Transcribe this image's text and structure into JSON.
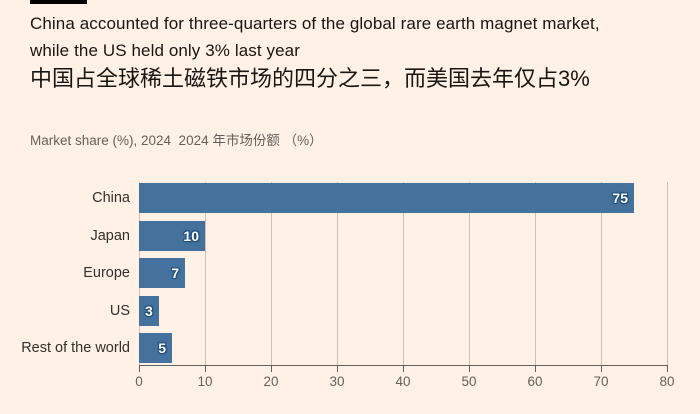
{
  "header": {
    "title_en_line1": "China accounted for three-quarters of the global rare earth magnet market,",
    "title_en_line2": "while the US held only 3% last year",
    "title_zh": "中国占全球稀土磁铁市场的四分之三，而美国去年仅占3%",
    "subtitle": "Market share (%), 2024  2024 年市场份额 （%）"
  },
  "colors": {
    "background": "#FFF1E5",
    "bar": "#45719D",
    "value_label_halo": "#1F4E7A",
    "gridline": "#CDC1B7",
    "axis": "#66605C",
    "title_text": "#1A1613",
    "category_text": "#33302E"
  },
  "chart_data": {
    "type": "bar",
    "orientation": "horizontal",
    "title": "China accounted for three-quarters of the global rare earth magnet market, while the US held only 3% last year",
    "subtitle": "Market share (%), 2024",
    "categories": [
      "China",
      "Japan",
      "Europe",
      "US",
      "Rest of the world"
    ],
    "values": [
      75,
      10,
      7,
      3,
      5
    ],
    "xlabel": "",
    "ylabel": "",
    "xlim": [
      0,
      80
    ],
    "xticks": [
      0,
      10,
      20,
      30,
      40,
      50,
      60,
      70,
      80
    ],
    "grid": true,
    "legend": false,
    "value_labels": true
  }
}
